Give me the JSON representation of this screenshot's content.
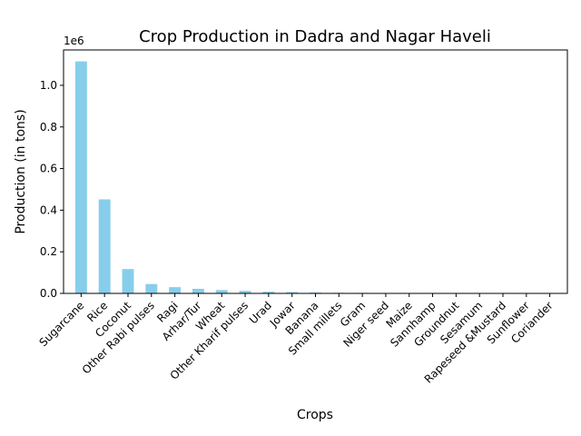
{
  "chart_data": {
    "type": "bar",
    "title": "Crop Production in Dadra and Nagar Haveli",
    "xlabel": "Crops",
    "ylabel": "Production (in tons)",
    "y_offset_label": "1e6",
    "ylim": [
      0,
      1170000
    ],
    "yticks": [
      0,
      200000,
      400000,
      600000,
      800000,
      1000000
    ],
    "ytick_labels": [
      "0.0",
      "0.2",
      "0.4",
      "0.6",
      "0.8",
      "1.0"
    ],
    "grid": false,
    "legend": "none",
    "bar_color": "#87ceeb",
    "categories": [
      "Sugarcane",
      "Rice",
      "Coconut",
      "Other  Rabi pulses",
      "Ragi",
      "Arhar/Tur",
      "Wheat",
      "Other Kharif pulses",
      "Urad",
      "Jowar",
      "Banana",
      "Small millets",
      "Gram",
      "Niger seed",
      "Maize",
      "Sannhamp",
      "Groundnut",
      "Sesamum",
      "Rapeseed &Mustard",
      "Sunflower",
      "Coriander"
    ],
    "values": [
      1115000,
      452000,
      117000,
      45000,
      30000,
      22000,
      16000,
      12000,
      8000,
      6000,
      4000,
      3000,
      2500,
      2000,
      1000,
      500,
      300,
      200,
      100,
      50,
      20
    ]
  }
}
